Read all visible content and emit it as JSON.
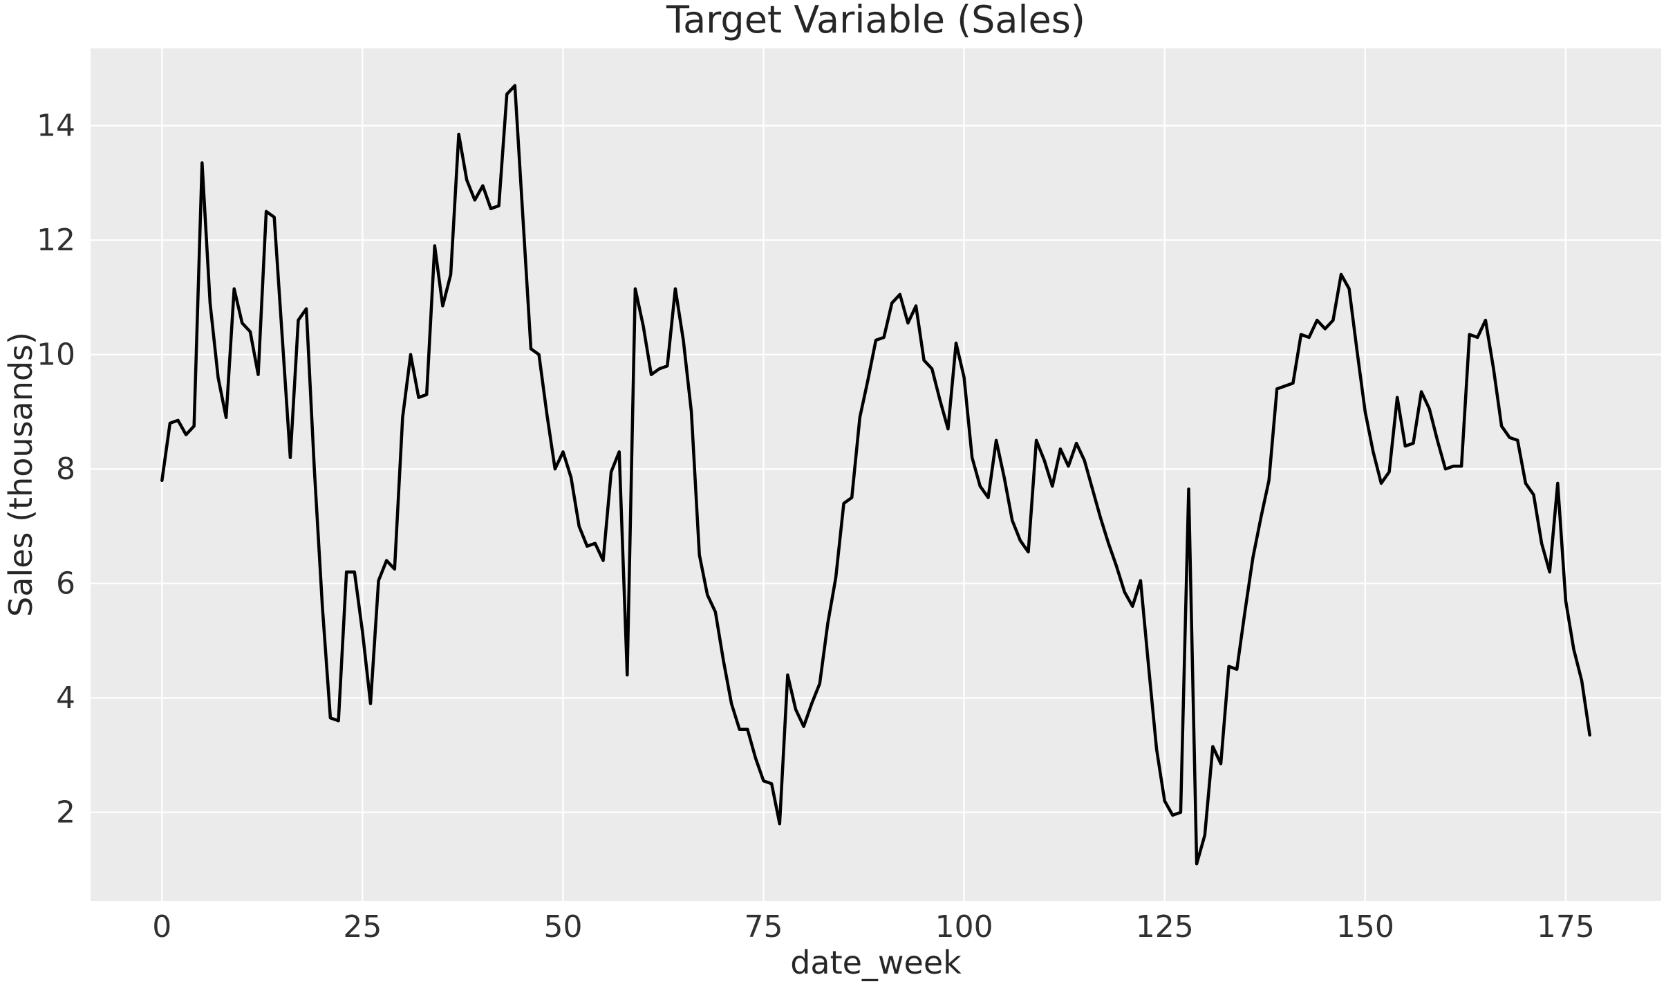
{
  "figure": {
    "background_color": "#ffffff",
    "plot_background_color": "#ebebeb",
    "grid_color": "#ffffff",
    "line_color": "#000000",
    "text_color": "#262626"
  },
  "chart_data": {
    "type": "line",
    "title": "Target Variable (Sales)",
    "xlabel": "date_week",
    "ylabel": "Sales (thousands)",
    "x_ticks": [
      0,
      25,
      50,
      75,
      100,
      125,
      150,
      175
    ],
    "y_ticks": [
      2,
      4,
      6,
      8,
      10,
      12,
      14
    ],
    "xlim": [
      -8.9,
      186.9
    ],
    "ylim": [
      0.45,
      15.35
    ],
    "grid": true,
    "legend": false,
    "series": [
      {
        "name": "Sales",
        "x_start": 0,
        "x_step": 1,
        "values": [
          7.8,
          8.8,
          8.85,
          8.6,
          8.75,
          13.35,
          10.9,
          9.6,
          8.9,
          11.15,
          10.55,
          10.4,
          9.65,
          12.5,
          12.4,
          10.3,
          8.2,
          10.6,
          10.8,
          8.0,
          5.6,
          3.65,
          3.6,
          6.2,
          6.2,
          5.15,
          3.9,
          6.05,
          6.4,
          6.25,
          8.9,
          10.0,
          9.25,
          9.3,
          11.9,
          10.85,
          11.4,
          13.85,
          13.05,
          12.7,
          12.95,
          12.55,
          12.6,
          14.55,
          14.7,
          12.4,
          10.1,
          10.0,
          8.95,
          8.0,
          8.3,
          7.85,
          7.0,
          6.65,
          6.7,
          6.4,
          7.95,
          8.3,
          4.4,
          11.15,
          10.5,
          9.65,
          9.75,
          9.8,
          11.15,
          10.25,
          9.0,
          6.5,
          5.8,
          5.5,
          4.65,
          3.9,
          3.45,
          3.45,
          2.95,
          2.55,
          2.5,
          1.8,
          4.4,
          3.8,
          3.5,
          3.9,
          4.25,
          5.3,
          6.1,
          7.4,
          7.5,
          8.9,
          9.55,
          10.25,
          10.3,
          10.9,
          11.05,
          10.55,
          10.85,
          9.9,
          9.75,
          9.2,
          8.7,
          10.2,
          9.6,
          8.2,
          7.7,
          7.5,
          8.5,
          7.85,
          7.1,
          6.75,
          6.55,
          8.5,
          8.15,
          7.7,
          8.35,
          8.05,
          8.45,
          8.15,
          7.65,
          7.15,
          6.7,
          6.3,
          5.85,
          5.6,
          6.05,
          4.55,
          3.1,
          2.2,
          1.95,
          2.0,
          7.65,
          1.1,
          1.6,
          3.15,
          2.85,
          4.55,
          4.5,
          5.5,
          6.45,
          7.15,
          7.8,
          9.4,
          9.45,
          9.5,
          10.35,
          10.3,
          10.6,
          10.45,
          10.6,
          11.4,
          11.15,
          10.05,
          9.0,
          8.3,
          7.75,
          7.95,
          9.25,
          8.4,
          8.45,
          9.35,
          9.05,
          8.5,
          8.0,
          8.05,
          8.05,
          10.35,
          10.3,
          10.6,
          9.75,
          8.75,
          8.55,
          8.5,
          7.75,
          7.55,
          6.7,
          6.2,
          7.75,
          5.7,
          4.85,
          4.3,
          3.35
        ]
      }
    ]
  }
}
